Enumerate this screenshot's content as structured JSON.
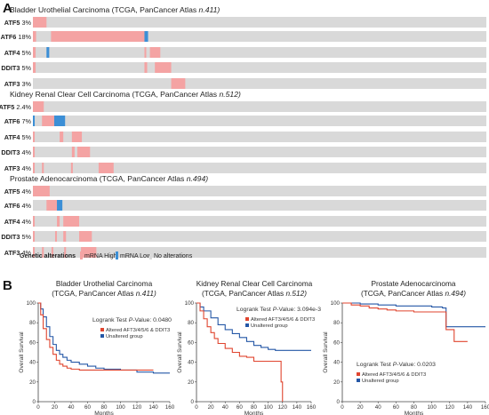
{
  "panels": {
    "a": "A",
    "b": "B"
  },
  "colors": {
    "track_bg": "#d9d9d9",
    "mrna_high": "#f4a3a3",
    "mrna_low": "#3c8fd6",
    "altered_line": "#e0452f",
    "unaltered_line": "#2457a6"
  },
  "chart_data": [
    {
      "type": "oncoprint",
      "cohorts": [
        {
          "title": "Bladder Urothelial Carcinoma (TCGA, PanCancer Atlas ",
          "title_n": "n.411)",
          "rows": [
            {
              "gene": "ATF5",
              "percent": "3%",
              "segments": [
                {
                  "s": 0.0,
                  "e": 0.03,
                  "t": "high"
                }
              ]
            },
            {
              "gene": "ATF6",
              "percent": "18%",
              "segments": [
                {
                  "s": 0.0,
                  "e": 0.007,
                  "t": "high"
                },
                {
                  "s": 0.04,
                  "e": 0.246,
                  "t": "high"
                },
                {
                  "s": 0.246,
                  "e": 0.254,
                  "t": "low"
                }
              ]
            },
            {
              "gene": "ATF4",
              "percent": "5%",
              "segments": [
                {
                  "s": 0.0,
                  "e": 0.006,
                  "t": "high"
                },
                {
                  "s": 0.03,
                  "e": 0.036,
                  "t": "low"
                },
                {
                  "s": 0.246,
                  "e": 0.25,
                  "t": "high"
                },
                {
                  "s": 0.258,
                  "e": 0.281,
                  "t": "high"
                }
              ]
            },
            {
              "gene": "DDIT3",
              "percent": "5%",
              "segments": [
                {
                  "s": 0.0,
                  "e": 0.006,
                  "t": "high"
                },
                {
                  "s": 0.246,
                  "e": 0.252,
                  "t": "high"
                },
                {
                  "s": 0.269,
                  "e": 0.305,
                  "t": "high"
                }
              ]
            },
            {
              "gene": "ATF3",
              "percent": "3%",
              "segments": [
                {
                  "s": 0.305,
                  "e": 0.336,
                  "t": "high"
                }
              ]
            }
          ]
        },
        {
          "title": "Kidney Renal Clear Cell Carcinoma (TCGA, PanCancer Atlas ",
          "title_n": "n.512)",
          "rows": [
            {
              "gene": "ATF5",
              "percent": "2.4%",
              "segments": [
                {
                  "s": 0.0,
                  "e": 0.024,
                  "t": "high"
                }
              ]
            },
            {
              "gene": "ATF6",
              "percent": "7%",
              "segments": [
                {
                  "s": 0.0,
                  "e": 0.004,
                  "t": "low"
                },
                {
                  "s": 0.02,
                  "e": 0.047,
                  "t": "high"
                },
                {
                  "s": 0.047,
                  "e": 0.071,
                  "t": "low"
                }
              ]
            },
            {
              "gene": "ATF4",
              "percent": "5%",
              "segments": [
                {
                  "s": 0.0,
                  "e": 0.004,
                  "t": "high"
                },
                {
                  "s": 0.059,
                  "e": 0.067,
                  "t": "high"
                },
                {
                  "s": 0.086,
                  "e": 0.108,
                  "t": "high"
                }
              ]
            },
            {
              "gene": "DDIT3",
              "percent": "4%",
              "segments": [
                {
                  "s": 0.0,
                  "e": 0.004,
                  "t": "high"
                },
                {
                  "s": 0.086,
                  "e": 0.092,
                  "t": "high"
                },
                {
                  "s": 0.098,
                  "e": 0.126,
                  "t": "high"
                }
              ]
            },
            {
              "gene": "ATF3",
              "percent": "4%",
              "segments": [
                {
                  "s": 0.0,
                  "e": 0.004,
                  "t": "high"
                },
                {
                  "s": 0.02,
                  "e": 0.024,
                  "t": "high"
                },
                {
                  "s": 0.084,
                  "e": 0.088,
                  "t": "high"
                },
                {
                  "s": 0.145,
                  "e": 0.178,
                  "t": "high"
                }
              ]
            }
          ]
        },
        {
          "title": "Prostate Adenocarcinoma (TCGA, PanCancer Atlas ",
          "title_n": "n.494)",
          "rows": [
            {
              "gene": "ATF5",
              "percent": "4%",
              "segments": [
                {
                  "s": 0.0,
                  "e": 0.037,
                  "t": "high"
                }
              ]
            },
            {
              "gene": "ATF6",
              "percent": "4%",
              "segments": [
                {
                  "s": 0.03,
                  "e": 0.053,
                  "t": "high"
                },
                {
                  "s": 0.053,
                  "e": 0.065,
                  "t": "low"
                }
              ]
            },
            {
              "gene": "ATF4",
              "percent": "4%",
              "segments": [
                {
                  "s": 0.0,
                  "e": 0.004,
                  "t": "high"
                },
                {
                  "s": 0.053,
                  "e": 0.059,
                  "t": "high"
                },
                {
                  "s": 0.067,
                  "e": 0.102,
                  "t": "high"
                }
              ]
            },
            {
              "gene": "DDIT3",
              "percent": "5%",
              "segments": [
                {
                  "s": 0.0,
                  "e": 0.004,
                  "t": "high"
                },
                {
                  "s": 0.049,
                  "e": 0.053,
                  "t": "high"
                },
                {
                  "s": 0.067,
                  "e": 0.073,
                  "t": "high"
                },
                {
                  "s": 0.102,
                  "e": 0.13,
                  "t": "high"
                }
              ]
            },
            {
              "gene": "ATF3",
              "percent": "4%",
              "segments": [
                {
                  "s": 0.0,
                  "e": 0.004,
                  "t": "high"
                },
                {
                  "s": 0.02,
                  "e": 0.024,
                  "t": "high"
                },
                {
                  "s": 0.041,
                  "e": 0.045,
                  "t": "high"
                },
                {
                  "s": 0.069,
                  "e": 0.073,
                  "t": "high"
                },
                {
                  "s": 0.106,
                  "e": 0.14,
                  "t": "high"
                }
              ]
            }
          ]
        }
      ],
      "legend": {
        "title": "Genetic alterations",
        "items": [
          {
            "label": "mRNA High",
            "t": "high"
          },
          {
            "label": "mRNA Low",
            "t": "low"
          },
          {
            "label": "No alterations",
            "t": "none"
          }
        ]
      }
    },
    {
      "type": "line",
      "title": [
        "Bladder Urothelial Carcinoma",
        "(TCGA, PanCancer Atlas ",
        "n.411)"
      ],
      "xlabel": "Months",
      "ylabel": "Overall Survival",
      "xlim": [
        0,
        160
      ],
      "ylim": [
        0,
        100
      ],
      "xticks": [
        0,
        20,
        40,
        60,
        80,
        100,
        120,
        140,
        160
      ],
      "yticks": [
        0,
        20,
        40,
        60,
        80,
        100
      ],
      "pvalue_label": "Logrank Test ",
      "pvalue_p": "P",
      "pvalue_rest": "-Value: 0.0480",
      "series": [
        {
          "name": "Altered AFT3/4/5/6  & DDIT3",
          "color_key": "altered_line",
          "x": [
            0,
            3,
            6,
            10,
            14,
            18,
            22,
            26,
            30,
            35,
            40,
            50,
            60,
            65,
            80,
            100,
            120,
            140
          ],
          "y": [
            100,
            88,
            74,
            63,
            55,
            48,
            42,
            38,
            36,
            34,
            33,
            32,
            32,
            32,
            32,
            32,
            32,
            32
          ]
        },
        {
          "name": "Unaltered group",
          "color_key": "unaltered_line",
          "x": [
            0,
            3,
            6,
            10,
            14,
            18,
            22,
            26,
            30,
            35,
            40,
            50,
            60,
            70,
            80,
            100,
            120,
            140,
            160
          ],
          "y": [
            100,
            94,
            86,
            76,
            66,
            58,
            52,
            48,
            45,
            42,
            40,
            38,
            36,
            34,
            33,
            32,
            30,
            29,
            29
          ]
        }
      ]
    },
    {
      "type": "line",
      "title": [
        "Kidney Renal Clear Cell Carcinoma",
        "(TCGA, PanCancer Atlas ",
        "n.512)"
      ],
      "xlabel": "Months",
      "ylabel": "Overall Survival",
      "xlim": [
        0,
        160
      ],
      "ylim": [
        0,
        100
      ],
      "xticks": [
        0,
        20,
        40,
        60,
        80,
        100,
        120,
        140,
        160
      ],
      "yticks": [
        0,
        20,
        40,
        60,
        80,
        100
      ],
      "pvalue_label": "Logrank Test ",
      "pvalue_p": "P",
      "pvalue_rest": "-Value: 3.094e-3",
      "series": [
        {
          "name": "Altered AFT3/4/5/6  & DDIT3",
          "color_key": "altered_line",
          "x": [
            0,
            5,
            10,
            15,
            20,
            25,
            30,
            40,
            50,
            60,
            70,
            80,
            100,
            110,
            115,
            118,
            120
          ],
          "y": [
            100,
            92,
            84,
            76,
            70,
            64,
            59,
            54,
            50,
            46,
            45,
            41,
            41,
            41,
            41,
            20,
            0
          ]
        },
        {
          "name": "Unaltered group",
          "color_key": "unaltered_line",
          "x": [
            0,
            5,
            10,
            20,
            30,
            40,
            50,
            60,
            70,
            80,
            90,
            100,
            110,
            120,
            140,
            160
          ],
          "y": [
            100,
            96,
            92,
            85,
            78,
            73,
            69,
            65,
            61,
            57,
            55,
            53,
            52,
            52,
            52,
            52
          ]
        }
      ]
    },
    {
      "type": "line",
      "title": [
        "Prostate Adenocarcinoma",
        "(TCGA, PanCancer Atlas ",
        "n.494)"
      ],
      "xlabel": "Months",
      "ylabel": "Overall Survival",
      "xlim": [
        0,
        160
      ],
      "ylim": [
        0,
        100
      ],
      "xticks": [
        0,
        20,
        40,
        60,
        80,
        100,
        120,
        140,
        160
      ],
      "yticks": [
        0,
        20,
        40,
        60,
        80,
        100
      ],
      "pvalue_label": "Logrank Test ",
      "pvalue_p": "P",
      "pvalue_rest": "-Value: 0.0203",
      "series": [
        {
          "name": "Altered AFT3/4/5/6  & DDIT3",
          "color_key": "altered_line",
          "x": [
            0,
            10,
            20,
            30,
            40,
            50,
            60,
            80,
            100,
            112,
            116,
            125,
            140
          ],
          "y": [
            100,
            98,
            97,
            95,
            94,
            93,
            92,
            91,
            91,
            91,
            73,
            61,
            61
          ]
        },
        {
          "name": "Unaltered group",
          "color_key": "unaltered_line",
          "x": [
            0,
            20,
            40,
            60,
            80,
            100,
            112,
            116,
            130,
            160
          ],
          "y": [
            100,
            99,
            98,
            97,
            97,
            96,
            95,
            76,
            76,
            76
          ]
        }
      ]
    }
  ]
}
